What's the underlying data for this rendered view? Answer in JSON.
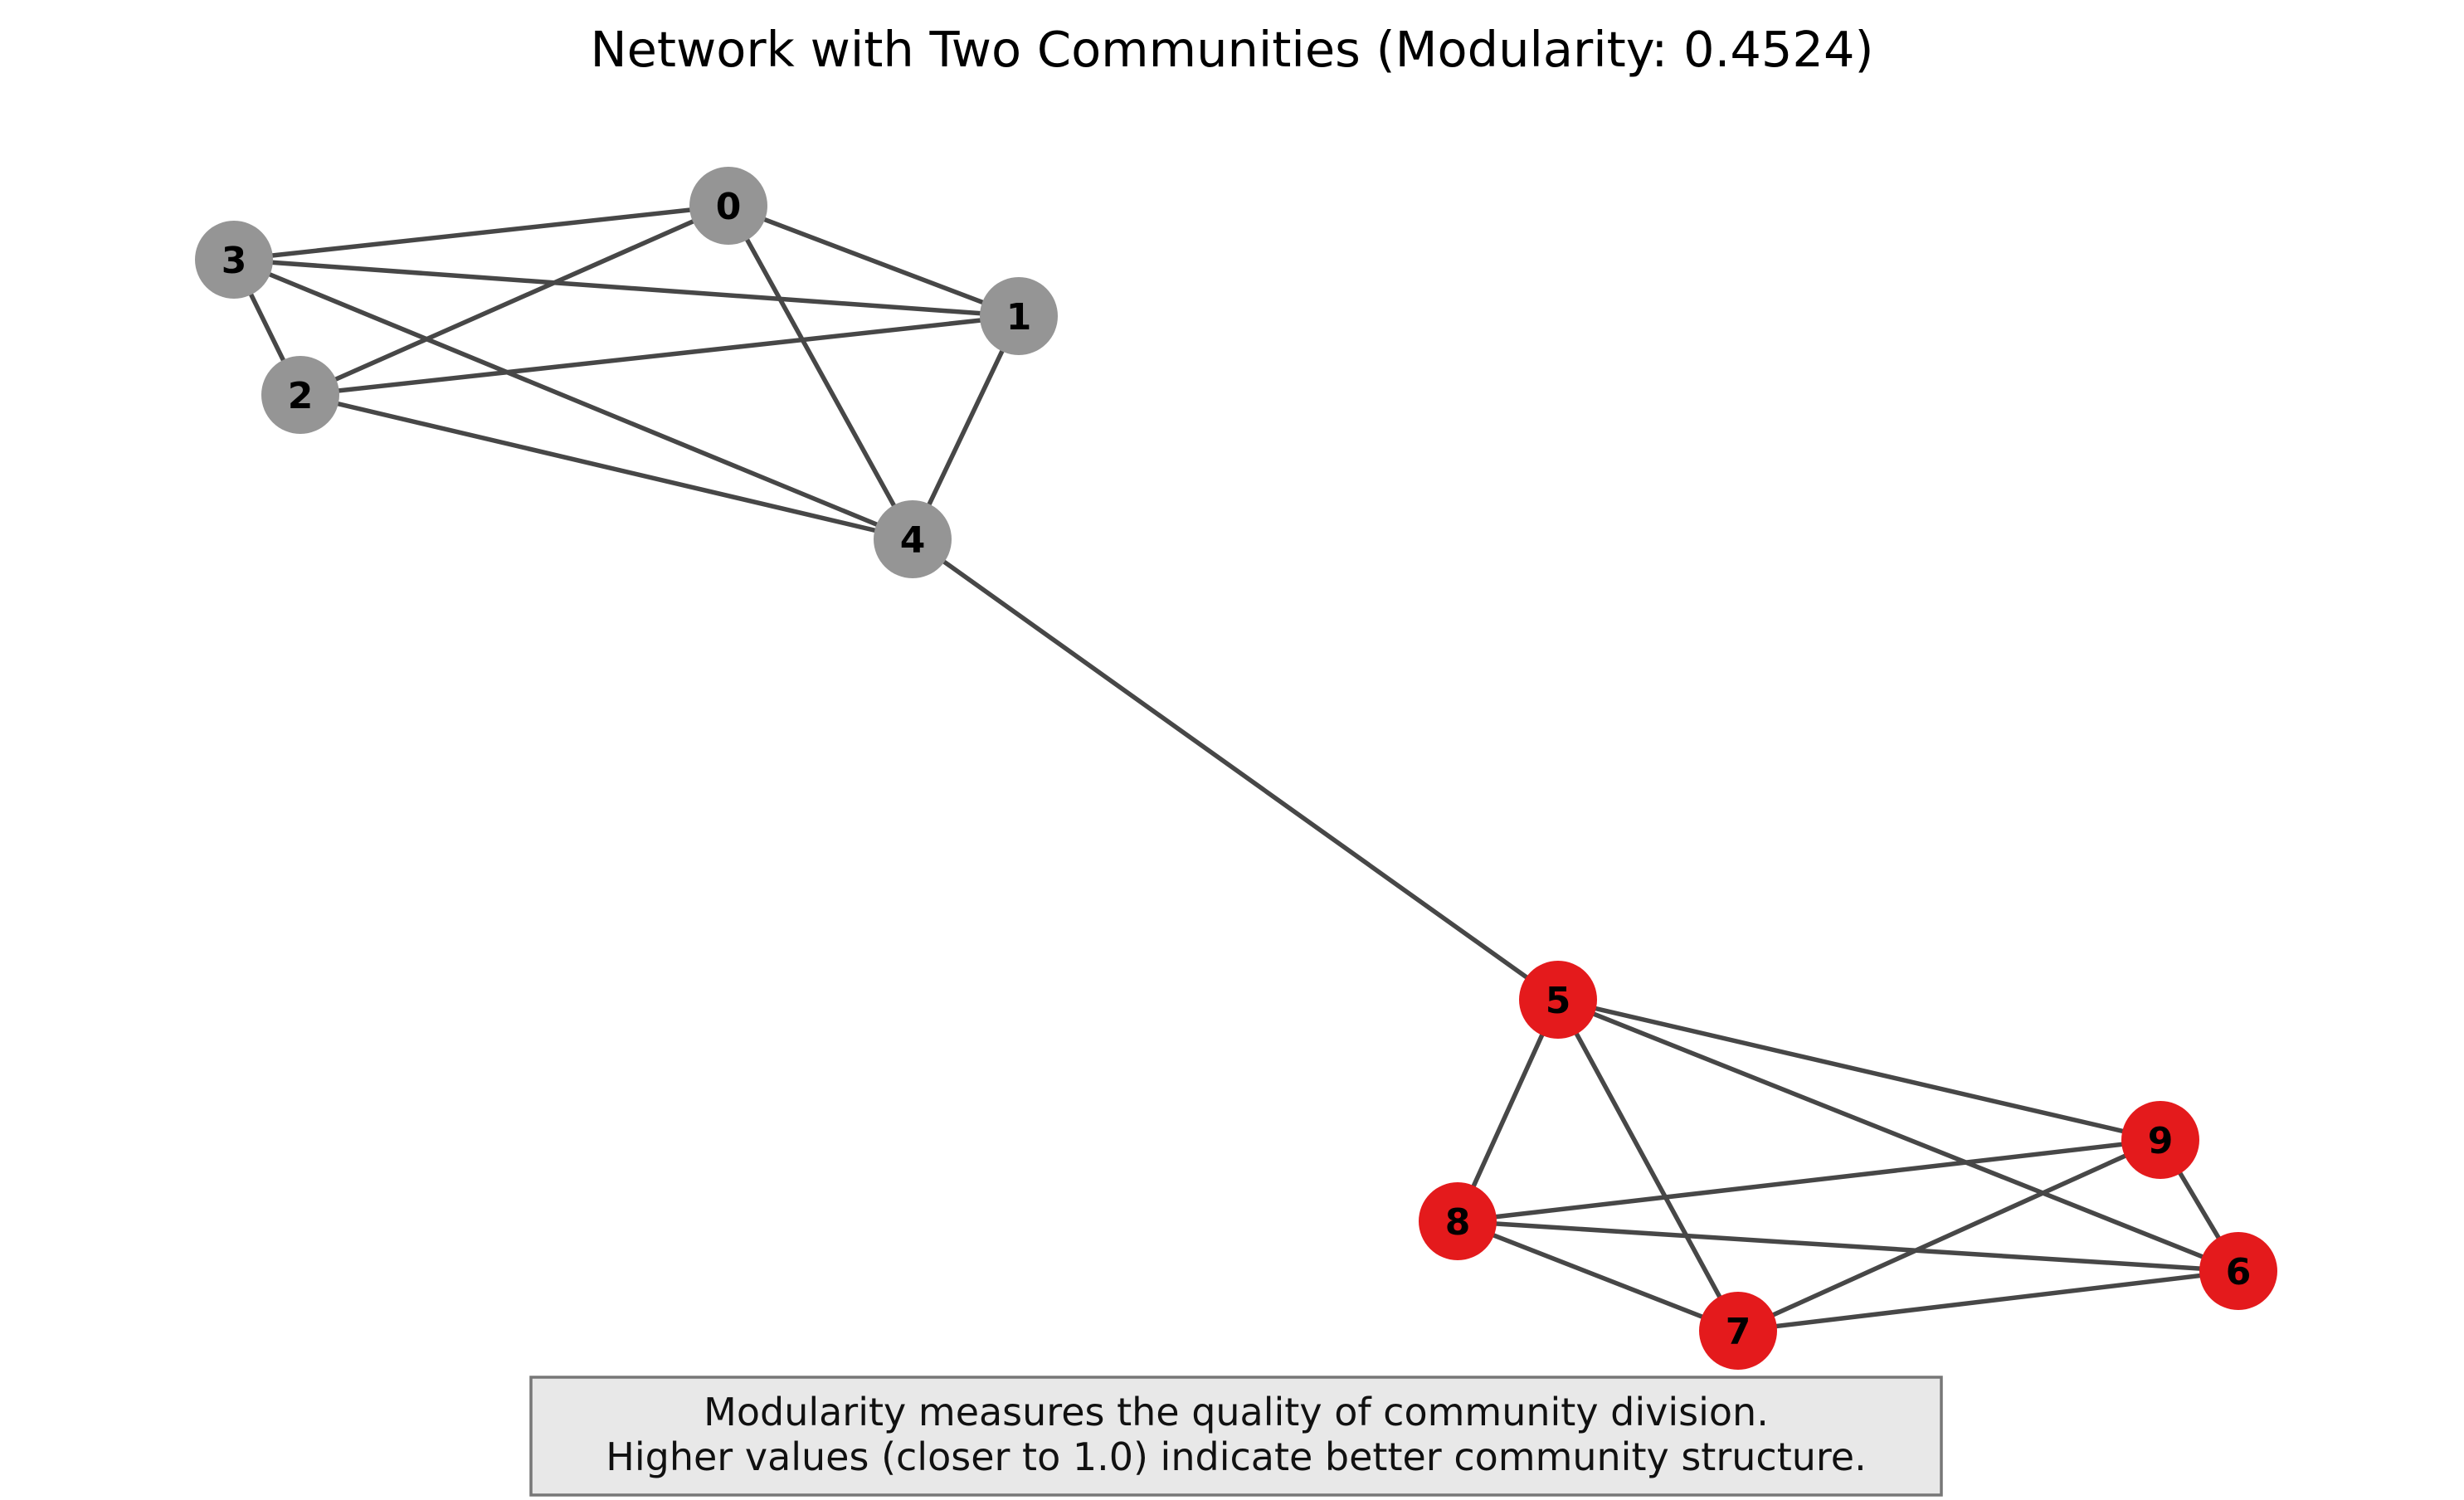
{
  "title": "Network with Two Communities (Modularity: 0.4524)",
  "communities": [
    {
      "id": "community-0",
      "color": "#959595",
      "nodes": [
        "0",
        "1",
        "2",
        "3",
        "4"
      ]
    },
    {
      "id": "community-1",
      "color": "#e41a1c",
      "nodes": [
        "5",
        "6",
        "7",
        "8",
        "9"
      ]
    }
  ],
  "nodes": [
    {
      "id": "0",
      "label": "0",
      "community": 0
    },
    {
      "id": "1",
      "label": "1",
      "community": 0
    },
    {
      "id": "2",
      "label": "2",
      "community": 0
    },
    {
      "id": "3",
      "label": "3",
      "community": 0
    },
    {
      "id": "4",
      "label": "4",
      "community": 0
    },
    {
      "id": "5",
      "label": "5",
      "community": 1
    },
    {
      "id": "6",
      "label": "6",
      "community": 1
    },
    {
      "id": "7",
      "label": "7",
      "community": 1
    },
    {
      "id": "8",
      "label": "8",
      "community": 1
    },
    {
      "id": "9",
      "label": "9",
      "community": 1
    }
  ],
  "edges": [
    [
      "0",
      "1"
    ],
    [
      "0",
      "2"
    ],
    [
      "0",
      "3"
    ],
    [
      "0",
      "4"
    ],
    [
      "1",
      "2"
    ],
    [
      "1",
      "3"
    ],
    [
      "1",
      "4"
    ],
    [
      "2",
      "3"
    ],
    [
      "2",
      "4"
    ],
    [
      "3",
      "4"
    ],
    [
      "4",
      "5"
    ],
    [
      "5",
      "6"
    ],
    [
      "5",
      "7"
    ],
    [
      "5",
      "8"
    ],
    [
      "5",
      "9"
    ],
    [
      "6",
      "7"
    ],
    [
      "6",
      "8"
    ],
    [
      "6",
      "9"
    ],
    [
      "7",
      "8"
    ],
    [
      "7",
      "9"
    ],
    [
      "8",
      "9"
    ]
  ],
  "note": {
    "line1": "Modularity measures the quality of community division.",
    "line2": "Higher values (closer to 1.0) indicate better community structure."
  },
  "edge_color": "#474747"
}
